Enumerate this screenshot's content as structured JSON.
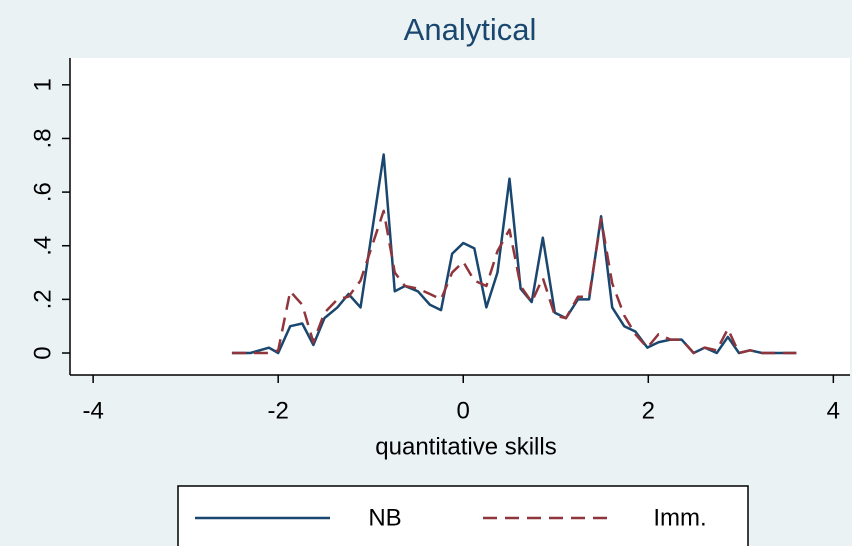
{
  "chart_data": {
    "type": "line",
    "title": "Analytical",
    "x_label": "quantitative skills",
    "x": [
      -2.5,
      -2.3,
      -2.1,
      -2.0,
      -1.87,
      -1.74,
      -1.62,
      -1.5,
      -1.36,
      -1.24,
      -1.11,
      -0.86,
      -0.74,
      -0.63,
      -0.49,
      -0.36,
      -0.24,
      -0.12,
      0,
      0.12,
      0.25,
      0.37,
      0.5,
      0.62,
      0.74,
      0.86,
      0.99,
      1.11,
      1.24,
      1.36,
      1.49,
      1.61,
      1.74,
      1.86,
      1.99,
      2.11,
      2.24,
      2.36,
      2.49,
      2.61,
      2.74,
      2.86,
      2.98,
      3.1,
      3.23,
      3.6
    ],
    "series": [
      {
        "name": "NB",
        "color": "#1a476f",
        "dashed": false,
        "values": [
          0,
          0,
          0.02,
          0,
          0.1,
          0.11,
          0.03,
          0.13,
          0.17,
          0.22,
          0.17,
          0.74,
          0.23,
          0.25,
          0.23,
          0.18,
          0.16,
          0.37,
          0.41,
          0.39,
          0.17,
          0.3,
          0.65,
          0.24,
          0.19,
          0.43,
          0.15,
          0.13,
          0.2,
          0.2,
          0.51,
          0.17,
          0.1,
          0.08,
          0.02,
          0.04,
          0.05,
          0.05,
          0,
          0.02,
          0,
          0.06,
          0,
          0.01,
          0,
          0
        ]
      },
      {
        "name": "Imm.",
        "color": "#90353b",
        "dashed": true,
        "values": [
          0,
          0,
          0,
          0.01,
          0.23,
          0.18,
          0.04,
          0.15,
          0.2,
          0.21,
          0.27,
          0.53,
          0.3,
          0.25,
          0.24,
          0.22,
          0.2,
          0.3,
          0.34,
          0.27,
          0.25,
          0.38,
          0.46,
          0.25,
          0.19,
          0.28,
          0.14,
          0.13,
          0.21,
          0.21,
          0.5,
          0.26,
          0.14,
          0.07,
          0.02,
          0.07,
          0.05,
          0.05,
          0,
          0.02,
          0.01,
          0.09,
          0,
          0.01,
          0,
          0
        ]
      }
    ],
    "xlim": [
      -4.25,
      4.18
    ],
    "xticks": [
      -4,
      -2,
      0,
      2,
      4
    ],
    "ylim": [
      -0.082,
      1.1
    ],
    "yticks": [
      0,
      {
        "value": 0.2,
        "label": ".2"
      },
      {
        "value": 0.4,
        "label": ".4"
      },
      {
        "value": 0.6,
        "label": ".6"
      },
      {
        "value": 0.8,
        "label": ".8"
      },
      1
    ],
    "grid": false,
    "legend": "bottom"
  }
}
